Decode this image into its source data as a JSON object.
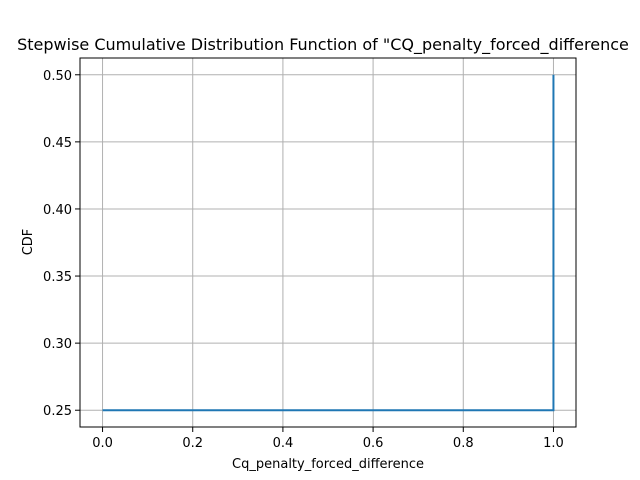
{
  "chart_data": {
    "type": "line",
    "title": "Stepwise Cumulative Distribution Function of \"CQ_penalty_forced_difference",
    "xlabel": "Cq_penalty_forced_difference",
    "ylabel": "CDF",
    "xlim": [
      -0.05,
      1.05
    ],
    "ylim": [
      0.2375,
      0.5125
    ],
    "x_ticks": [
      0.0,
      0.2,
      0.4,
      0.6,
      0.8,
      1.0
    ],
    "x_tick_labels": [
      "0.0",
      "0.2",
      "0.4",
      "0.6",
      "0.8",
      "1.0"
    ],
    "y_ticks": [
      0.25,
      0.3,
      0.35,
      0.4,
      0.45,
      0.5
    ],
    "y_tick_labels": [
      "0.25",
      "0.30",
      "0.35",
      "0.40",
      "0.45",
      "0.50"
    ],
    "grid": true,
    "series": [
      {
        "color": "#1f77b4",
        "step": "post",
        "x": [
          0.0,
          1.0,
          1.0
        ],
        "y": [
          0.25,
          0.25,
          0.5
        ]
      }
    ]
  }
}
